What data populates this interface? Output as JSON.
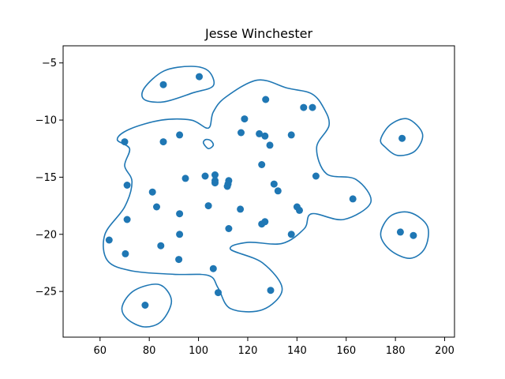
{
  "chart_data": {
    "type": "scatter",
    "title": "Jesse Winchester",
    "xlabel": "",
    "ylabel": "",
    "xlim": [
      45,
      204
    ],
    "ylim": [
      -29,
      -3.5
    ],
    "xticks": [
      60,
      80,
      100,
      120,
      140,
      160,
      180,
      200
    ],
    "yticks": [
      -5,
      -10,
      -15,
      -20,
      -25
    ],
    "grid": false,
    "color": "#1f77b4",
    "points": [
      {
        "x": 85.7,
        "y": -6.9
      },
      {
        "x": 100.3,
        "y": -6.2
      },
      {
        "x": 127.3,
        "y": -8.2
      },
      {
        "x": 142.7,
        "y": -8.9
      },
      {
        "x": 146.3,
        "y": -8.9
      },
      {
        "x": 118.7,
        "y": -9.9
      },
      {
        "x": 117.3,
        "y": -11.1
      },
      {
        "x": 124.7,
        "y": -11.2
      },
      {
        "x": 127.0,
        "y": -11.4
      },
      {
        "x": 129.0,
        "y": -12.2
      },
      {
        "x": 137.7,
        "y": -11.3
      },
      {
        "x": 92.3,
        "y": -11.3
      },
      {
        "x": 85.7,
        "y": -11.9
      },
      {
        "x": 70.0,
        "y": -11.9
      },
      {
        "x": 182.7,
        "y": -11.6
      },
      {
        "x": 125.7,
        "y": -13.9
      },
      {
        "x": 147.7,
        "y": -14.9
      },
      {
        "x": 102.7,
        "y": -14.9
      },
      {
        "x": 106.7,
        "y": -14.8
      },
      {
        "x": 106.7,
        "y": -15.3
      },
      {
        "x": 106.7,
        "y": -15.5
      },
      {
        "x": 112.3,
        "y": -15.3
      },
      {
        "x": 112.0,
        "y": -15.6
      },
      {
        "x": 111.7,
        "y": -15.8
      },
      {
        "x": 94.7,
        "y": -15.1
      },
      {
        "x": 71.0,
        "y": -15.7
      },
      {
        "x": 130.7,
        "y": -15.6
      },
      {
        "x": 132.3,
        "y": -16.2
      },
      {
        "x": 81.3,
        "y": -16.3
      },
      {
        "x": 162.7,
        "y": -16.9
      },
      {
        "x": 83.0,
        "y": -17.6
      },
      {
        "x": 104.0,
        "y": -17.5
      },
      {
        "x": 117.0,
        "y": -17.8
      },
      {
        "x": 140.0,
        "y": -17.6
      },
      {
        "x": 141.0,
        "y": -17.9
      },
      {
        "x": 92.3,
        "y": -18.2
      },
      {
        "x": 71.0,
        "y": -18.7
      },
      {
        "x": 127.0,
        "y": -18.9
      },
      {
        "x": 125.7,
        "y": -19.1
      },
      {
        "x": 112.3,
        "y": -19.5
      },
      {
        "x": 92.3,
        "y": -20.0
      },
      {
        "x": 137.7,
        "y": -20.0
      },
      {
        "x": 182.0,
        "y": -19.8
      },
      {
        "x": 187.3,
        "y": -20.1
      },
      {
        "x": 63.7,
        "y": -20.5
      },
      {
        "x": 84.7,
        "y": -21.0
      },
      {
        "x": 70.3,
        "y": -21.7
      },
      {
        "x": 92.0,
        "y": -22.2
      },
      {
        "x": 106.0,
        "y": -23.0
      },
      {
        "x": 108.0,
        "y": -25.1
      },
      {
        "x": 129.3,
        "y": -24.9
      },
      {
        "x": 78.3,
        "y": -26.2
      }
    ],
    "contours": [
      [
        [
          72,
          -12.5
        ],
        [
          70,
          -14
        ],
        [
          73,
          -15.4
        ],
        [
          70,
          -17.6
        ],
        [
          62,
          -20
        ],
        [
          63,
          -22.3
        ],
        [
          73,
          -23.2
        ],
        [
          90,
          -23.5
        ],
        [
          104,
          -23.6
        ],
        [
          108,
          -24.7
        ],
        [
          113,
          -26.5
        ],
        [
          126,
          -26.6
        ],
        [
          134,
          -24.8
        ],
        [
          126,
          -22.5
        ],
        [
          113,
          -21.3
        ],
        [
          120,
          -20.7
        ],
        [
          134,
          -20.8
        ],
        [
          143,
          -19.5
        ],
        [
          146,
          -18.2
        ],
        [
          159,
          -18.7
        ],
        [
          170,
          -17.2
        ],
        [
          164,
          -15.2
        ],
        [
          152,
          -14.7
        ],
        [
          148,
          -12.4
        ],
        [
          153,
          -10.5
        ],
        [
          151,
          -9
        ],
        [
          146,
          -7.7
        ],
        [
          136,
          -7.2
        ],
        [
          124,
          -6.5
        ],
        [
          111,
          -8
        ],
        [
          106,
          -9.3
        ],
        [
          104,
          -10.7
        ],
        [
          97,
          -10
        ],
        [
          85,
          -10
        ],
        [
          72,
          -10.8
        ],
        [
          67,
          -11.7
        ]
      ],
      [
        [
          78,
          -7.2
        ],
        [
          86,
          -5.7
        ],
        [
          97,
          -5.3
        ],
        [
          104,
          -5.7
        ],
        [
          106,
          -7
        ],
        [
          98,
          -7.6
        ],
        [
          86,
          -8.4
        ],
        [
          78,
          -8.2
        ]
      ],
      [
        [
          102,
          -12
        ],
        [
          104,
          -12.5
        ],
        [
          106,
          -12.2
        ],
        [
          105,
          -11.8
        ],
        [
          103,
          -11.7
        ]
      ],
      [
        [
          174,
          -11.7
        ],
        [
          178,
          -10.4
        ],
        [
          185,
          -9.9
        ],
        [
          191,
          -11.2
        ],
        [
          188,
          -12.7
        ],
        [
          181,
          -13.1
        ],
        [
          176,
          -12.4
        ]
      ],
      [
        [
          174,
          -20
        ],
        [
          178,
          -18.4
        ],
        [
          186,
          -18.1
        ],
        [
          193,
          -19.3
        ],
        [
          192,
          -21.2
        ],
        [
          186,
          -22.1
        ],
        [
          178,
          -21.4
        ]
      ],
      [
        [
          69,
          -26.3
        ],
        [
          74,
          -24.9
        ],
        [
          84,
          -24.4
        ],
        [
          89,
          -25.8
        ],
        [
          85,
          -27.6
        ],
        [
          78,
          -28.1
        ],
        [
          71,
          -27.4
        ]
      ]
    ]
  }
}
